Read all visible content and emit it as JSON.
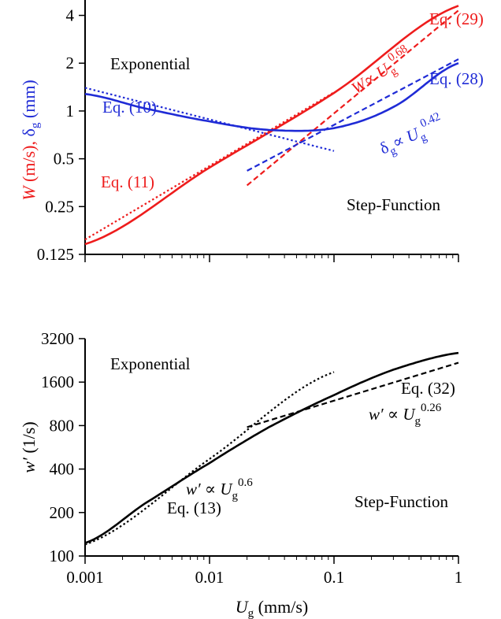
{
  "colors": {
    "red": "#ee1c1c",
    "blue": "#1f2bd6",
    "black": "#000000"
  },
  "chart_data": [
    {
      "type": "line",
      "xscale": "log",
      "yscale": "log",
      "xlim": [
        0.001,
        1
      ],
      "ylim": [
        0.125,
        5
      ],
      "xticks": [
        0.001,
        0.01,
        0.1,
        1
      ],
      "yticks": [
        0.125,
        0.25,
        0.5,
        1,
        2,
        4
      ],
      "ytick_labels": [
        "0.125",
        "0.25",
        "0.5",
        "1",
        "2",
        "4"
      ],
      "ylabel": {
        "w": "W",
        "units1": " (m/s), ",
        "delta": "δ",
        "sub": "g",
        "units2": " (mm)"
      },
      "series": [
        {
          "key": "w_solid",
          "color": "red",
          "dash": "none",
          "x": [
            0.001,
            0.01,
            0.1,
            1
          ],
          "y": [
            0.145,
            0.44,
            1.3,
            4.6
          ]
        },
        {
          "key": "w_eq11",
          "color": "red",
          "dash": "dotted",
          "x": [
            0.001,
            0.1
          ],
          "y": [
            0.155,
            1.31
          ]
        },
        {
          "key": "w_eq29",
          "color": "red",
          "dash": "dashed",
          "x": [
            0.02,
            1
          ],
          "y": [
            0.34,
            4.3
          ]
        },
        {
          "key": "d_solid",
          "color": "blue",
          "dash": "none",
          "x": [
            0.001,
            0.003,
            0.01,
            0.03,
            0.1,
            0.3,
            1
          ],
          "y": [
            1.28,
            1.04,
            0.86,
            0.76,
            0.78,
            1.06,
            2.0
          ]
        },
        {
          "key": "d_eq10",
          "color": "blue",
          "dash": "dotted",
          "x": [
            0.001,
            0.1
          ],
          "y": [
            1.4,
            0.56
          ]
        },
        {
          "key": "d_eq28",
          "color": "blue",
          "dash": "dashed",
          "x": [
            0.02,
            1
          ],
          "y": [
            0.42,
            2.12
          ]
        }
      ],
      "annotations": {
        "exponential": "Exponential",
        "step_function": "Step-Function",
        "eq29": "Eq. (29)",
        "eq28": "Eq. (28)",
        "eq10": "Eq. (10)",
        "eq11": "Eq. (11)",
        "w_prop": {
          "var": "W",
          "prop": "∝ ",
          "u": "U",
          "sub": "g",
          "exp": "0.68"
        },
        "d_prop": {
          "var": "δ",
          "sub": "g",
          "prop": "∝ ",
          "u": "U",
          "usub": "g",
          "exp": "0.42"
        }
      }
    },
    {
      "type": "line",
      "xscale": "log",
      "yscale": "log",
      "xlim": [
        0.001,
        1
      ],
      "ylim": [
        100,
        3200
      ],
      "xticks": [
        0.001,
        0.01,
        0.1,
        1
      ],
      "xtick_labels": [
        "0.001",
        "0.01",
        "0.1",
        "1"
      ],
      "yticks": [
        100,
        200,
        400,
        800,
        1600,
        3200
      ],
      "ytick_labels": [
        "100",
        "200",
        "400",
        "800",
        "1600",
        "3200"
      ],
      "xlabel": {
        "u": "U",
        "sub": "g",
        "units": " (mm/s)"
      },
      "ylabel": {
        "w": "w′",
        "units": " (1/s)"
      },
      "series": [
        {
          "key": "wp_solid",
          "color": "black",
          "dash": "none",
          "x": [
            0.001,
            0.003,
            0.01,
            0.03,
            0.1,
            0.3,
            1
          ],
          "y": [
            123,
            230,
            440,
            780,
            1300,
            1950,
            2550
          ]
        },
        {
          "key": "wp_eq13",
          "color": "black",
          "dash": "dotted",
          "x": [
            0.001,
            0.01,
            0.1
          ],
          "y": [
            120,
            470,
            1880
          ]
        },
        {
          "key": "wp_eq32",
          "color": "black",
          "dash": "dashed",
          "x": [
            0.02,
            1
          ],
          "y": [
            780,
            2180
          ]
        }
      ],
      "annotations": {
        "exponential": "Exponential",
        "step_function": "Step-Function",
        "eq32": "Eq. (32)",
        "eq13": "Eq. (13)",
        "wp026": {
          "var": "w′",
          "prop": " ∝ ",
          "u": "U",
          "sub": "g",
          "exp": "0.26"
        },
        "wp06": {
          "var": "w′",
          "prop": " ∝ ",
          "u": "U",
          "sub": "g",
          "exp": "0.6"
        }
      }
    }
  ]
}
